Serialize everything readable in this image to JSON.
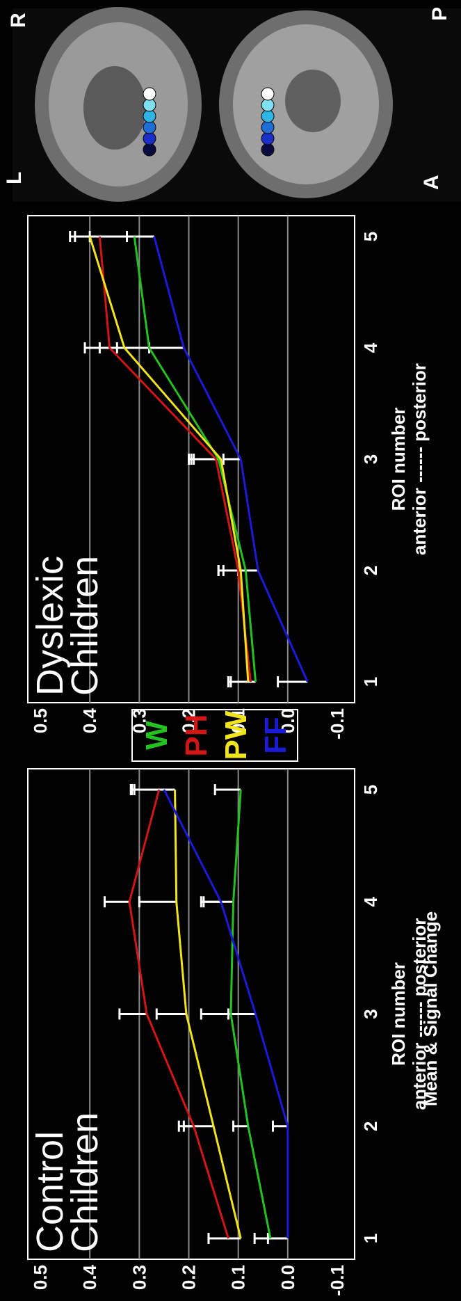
{
  "figure": {
    "y_axis_title": "Mean & Signal Change",
    "legend": [
      {
        "label": "W",
        "color": "#22c21f"
      },
      {
        "label": "PH",
        "color": "#d21515"
      },
      {
        "label": "PW",
        "color": "#f2e41a"
      },
      {
        "label": "FF",
        "color": "#1a1ad8"
      }
    ],
    "brain_labels": {
      "top_left": "A",
      "top_right": "P",
      "bottom_left": "L",
      "bottom_right": "R"
    },
    "roi_markers": [
      "#0a0a40",
      "#1a2ec8",
      "#1f6ed8",
      "#2fb4e6",
      "#7ee0f0",
      "#ffffff"
    ]
  },
  "chart_data": [
    {
      "type": "line",
      "title": "Control Children",
      "title_lines": [
        "Control",
        "Children"
      ],
      "xlabel_lines": [
        "ROI number",
        "anterior ------ posterior"
      ],
      "x": [
        1,
        2,
        3,
        4,
        5
      ],
      "x_tick_labels": [
        "1",
        "2",
        "3",
        "4",
        "5"
      ],
      "ylim": [
        -0.1,
        0.5
      ],
      "y_ticks": [
        -0.1,
        0.0,
        0.1,
        0.2,
        0.3,
        0.4,
        0.5
      ],
      "y_tick_labels": [
        "-0.1",
        "0.0",
        "0.1",
        "0.2",
        "0.3",
        "0.4",
        "0.5"
      ],
      "grid": true,
      "series": [
        {
          "name": "W",
          "color": "#22c21f",
          "values": [
            0.035,
            0.08,
            0.115,
            0.11,
            0.095
          ],
          "error_upper": [
            0.067,
            0.11,
            0.175,
            0.17,
            0.147
          ]
        },
        {
          "name": "PH",
          "color": "#d21515",
          "values": [
            0.12,
            0.19,
            0.285,
            0.32,
            0.26
          ],
          "error_upper": [
            0.16,
            0.22,
            0.34,
            0.37,
            0.315
          ]
        },
        {
          "name": "PW",
          "color": "#f2e41a",
          "values": [
            0.095,
            0.15,
            0.205,
            0.225,
            0.228
          ],
          "error_upper": [
            0.16,
            0.21,
            0.265,
            0.3,
            0.317
          ]
        },
        {
          "name": "FF",
          "color": "#1a1ad8",
          "values": [
            0.0,
            0.0,
            0.065,
            0.135,
            0.25
          ],
          "error_upper": [
            0.04,
            0.03,
            0.12,
            0.175,
            0.31
          ]
        }
      ]
    },
    {
      "type": "line",
      "title": "Dyslexic Children",
      "title_lines": [
        "Dyslexic",
        "Children"
      ],
      "xlabel_lines": [
        "ROI number",
        "anterior ------ posterior"
      ],
      "x": [
        1,
        2,
        3,
        4,
        5
      ],
      "x_tick_labels": [
        "1",
        "2",
        "3",
        "4",
        "5"
      ],
      "ylim": [
        -0.1,
        0.5
      ],
      "y_ticks": [
        -0.1,
        0.0,
        0.1,
        0.2,
        0.3,
        0.4,
        0.5
      ],
      "y_tick_labels": [
        "-0.1",
        "0.0",
        "0.1",
        "0.2",
        "0.3",
        "0.4",
        "0.5"
      ],
      "grid": true,
      "series": [
        {
          "name": "W",
          "color": "#22c21f",
          "values": [
            0.065,
            0.085,
            0.14,
            0.28,
            0.31
          ],
          "error_upper": [
            0.115,
            0.14,
            0.2,
            0.345,
            0.4
          ]
        },
        {
          "name": "PH",
          "color": "#d21515",
          "values": [
            0.075,
            0.1,
            0.145,
            0.36,
            0.38
          ],
          "error_upper": [
            0.12,
            0.14,
            0.195,
            0.41,
            0.43
          ]
        },
        {
          "name": "PW",
          "color": "#f2e41a",
          "values": [
            0.08,
            0.095,
            0.135,
            0.33,
            0.4
          ],
          "error_upper": [
            0.12,
            0.13,
            0.19,
            0.38,
            0.44
          ]
        },
        {
          "name": "FF",
          "color": "#1a1ad8",
          "values": [
            -0.04,
            0.06,
            0.095,
            0.21,
            0.27
          ],
          "error_upper": [
            0.02,
            0.1,
            0.13,
            0.28,
            0.325
          ]
        }
      ]
    }
  ]
}
